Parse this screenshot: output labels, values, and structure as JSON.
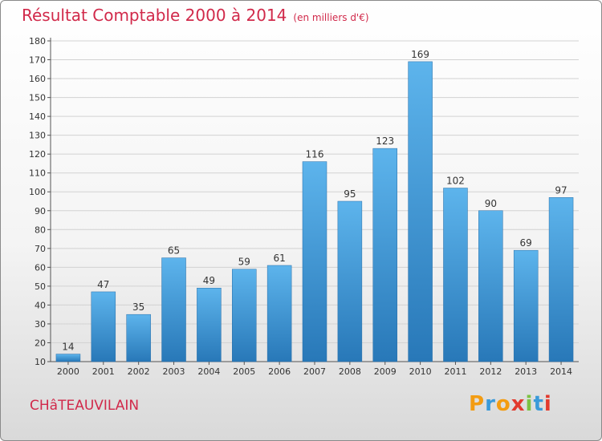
{
  "chart_data": {
    "type": "bar",
    "title": "Résultat Comptable 2000 à 2014",
    "unit_label": "(en milliers d'€)",
    "categories": [
      "2000",
      "2001",
      "2002",
      "2003",
      "2004",
      "2005",
      "2006",
      "2007",
      "2008",
      "2009",
      "2010",
      "2011",
      "2012",
      "2013",
      "2014"
    ],
    "values": [
      14,
      47,
      35,
      65,
      49,
      59,
      61,
      116,
      95,
      123,
      169,
      102,
      90,
      69,
      97
    ],
    "ylim": [
      10,
      180
    ],
    "yticks": [
      10,
      20,
      30,
      40,
      50,
      60,
      70,
      80,
      90,
      100,
      110,
      120,
      130,
      140,
      150,
      160,
      170,
      180
    ],
    "xlabel": "",
    "ylabel": "",
    "grid": true,
    "legend": "none"
  },
  "commune": "CHâTEAUVILAIN",
  "brand": {
    "letters": [
      "P",
      "r",
      "o",
      "x",
      "i",
      "t",
      "i"
    ],
    "colors": [
      "#f39c12",
      "#3a9ad9",
      "#f39c12",
      "#e23a2e",
      "#7cc243",
      "#3a9ad9",
      "#e23a2e"
    ]
  },
  "colors": {
    "bar_light": "#5db4ec",
    "bar_dark": "#2878b8",
    "title": "#d1294a",
    "grid": "#d2d2d2"
  }
}
